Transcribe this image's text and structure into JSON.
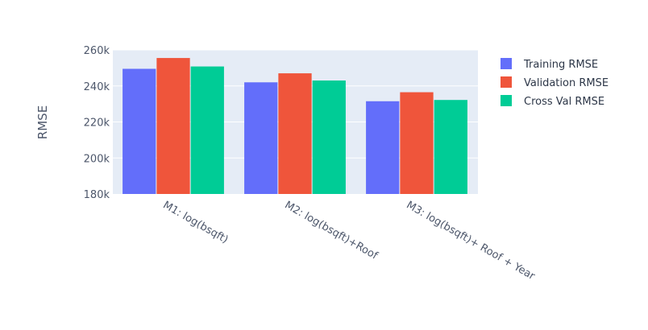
{
  "chart_data": {
    "type": "bar",
    "title": "",
    "xlabel": "",
    "ylabel": "RMSE",
    "ylim": [
      180000,
      260000
    ],
    "y_ticks": [
      180000,
      200000,
      220000,
      240000,
      260000
    ],
    "y_tick_labels": [
      "180k",
      "200k",
      "220k",
      "240k",
      "260k"
    ],
    "categories": [
      "M1: log(bsqft)",
      "M2: log(bsqft)+Roof",
      "M3: log(bsqft)+ Roof + Year"
    ],
    "series": [
      {
        "name": "Training RMSE",
        "color": "#636efa",
        "values": [
          249500,
          242000,
          231500
        ]
      },
      {
        "name": "Validation RMSE",
        "color": "#ef553b",
        "values": [
          255500,
          247000,
          236500
        ]
      },
      {
        "name": "Cross Val RMSE",
        "color": "#00cc96",
        "values": [
          250800,
          243000,
          232200
        ]
      }
    ],
    "grid": true,
    "legend_position": "top-right",
    "plot_background": "#e5ecf6"
  }
}
